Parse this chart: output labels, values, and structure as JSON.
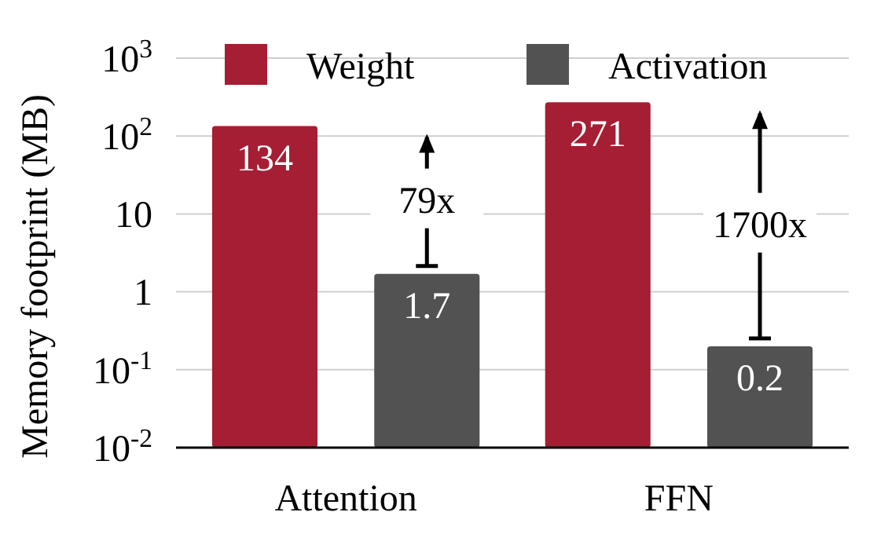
{
  "chart_data": {
    "type": "bar",
    "ylabel": "Memory footprint (MB)",
    "categories": [
      "Attention",
      "FFN"
    ],
    "series": [
      {
        "name": "Weight",
        "color": "#a61e34",
        "values": [
          134,
          271
        ]
      },
      {
        "name": "Activation",
        "color": "#525252",
        "values": [
          1.7,
          0.2
        ]
      }
    ],
    "log": true,
    "ylim": [
      0.01,
      1000
    ],
    "yticks": [
      {
        "value": 0.01,
        "label": "10$^{-2}$"
      },
      {
        "value": 0.1,
        "label": "10$^{-1}$"
      },
      1,
      10,
      {
        "value": 100,
        "label": "10$^{2}$"
      },
      {
        "value": 1000,
        "label": "10$^{3}$"
      }
    ],
    "grid": "y",
    "legend": "top",
    "data_labels": true,
    "annotations": [
      "79x",
      "1700x"
    ]
  }
}
